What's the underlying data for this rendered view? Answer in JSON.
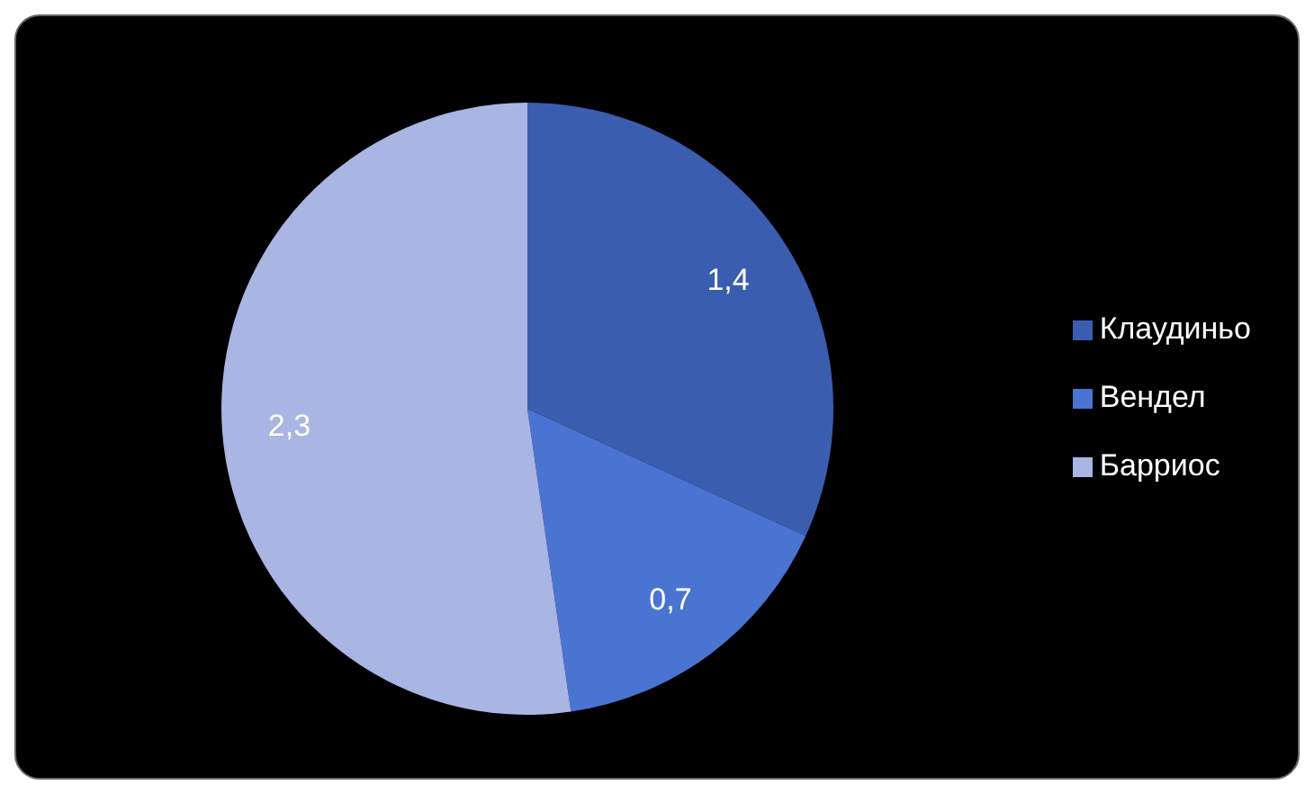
{
  "chart_data": {
    "type": "pie",
    "categories": [
      "Клаудиньо",
      "Вендел",
      "Барриос"
    ],
    "values": [
      1.4,
      0.7,
      2.3
    ],
    "colors": [
      "#3b5db0",
      "#4a74d2",
      "#a9b5e2"
    ],
    "value_labels": [
      "1,4",
      "0,7",
      "2,3"
    ],
    "legend": "right"
  }
}
